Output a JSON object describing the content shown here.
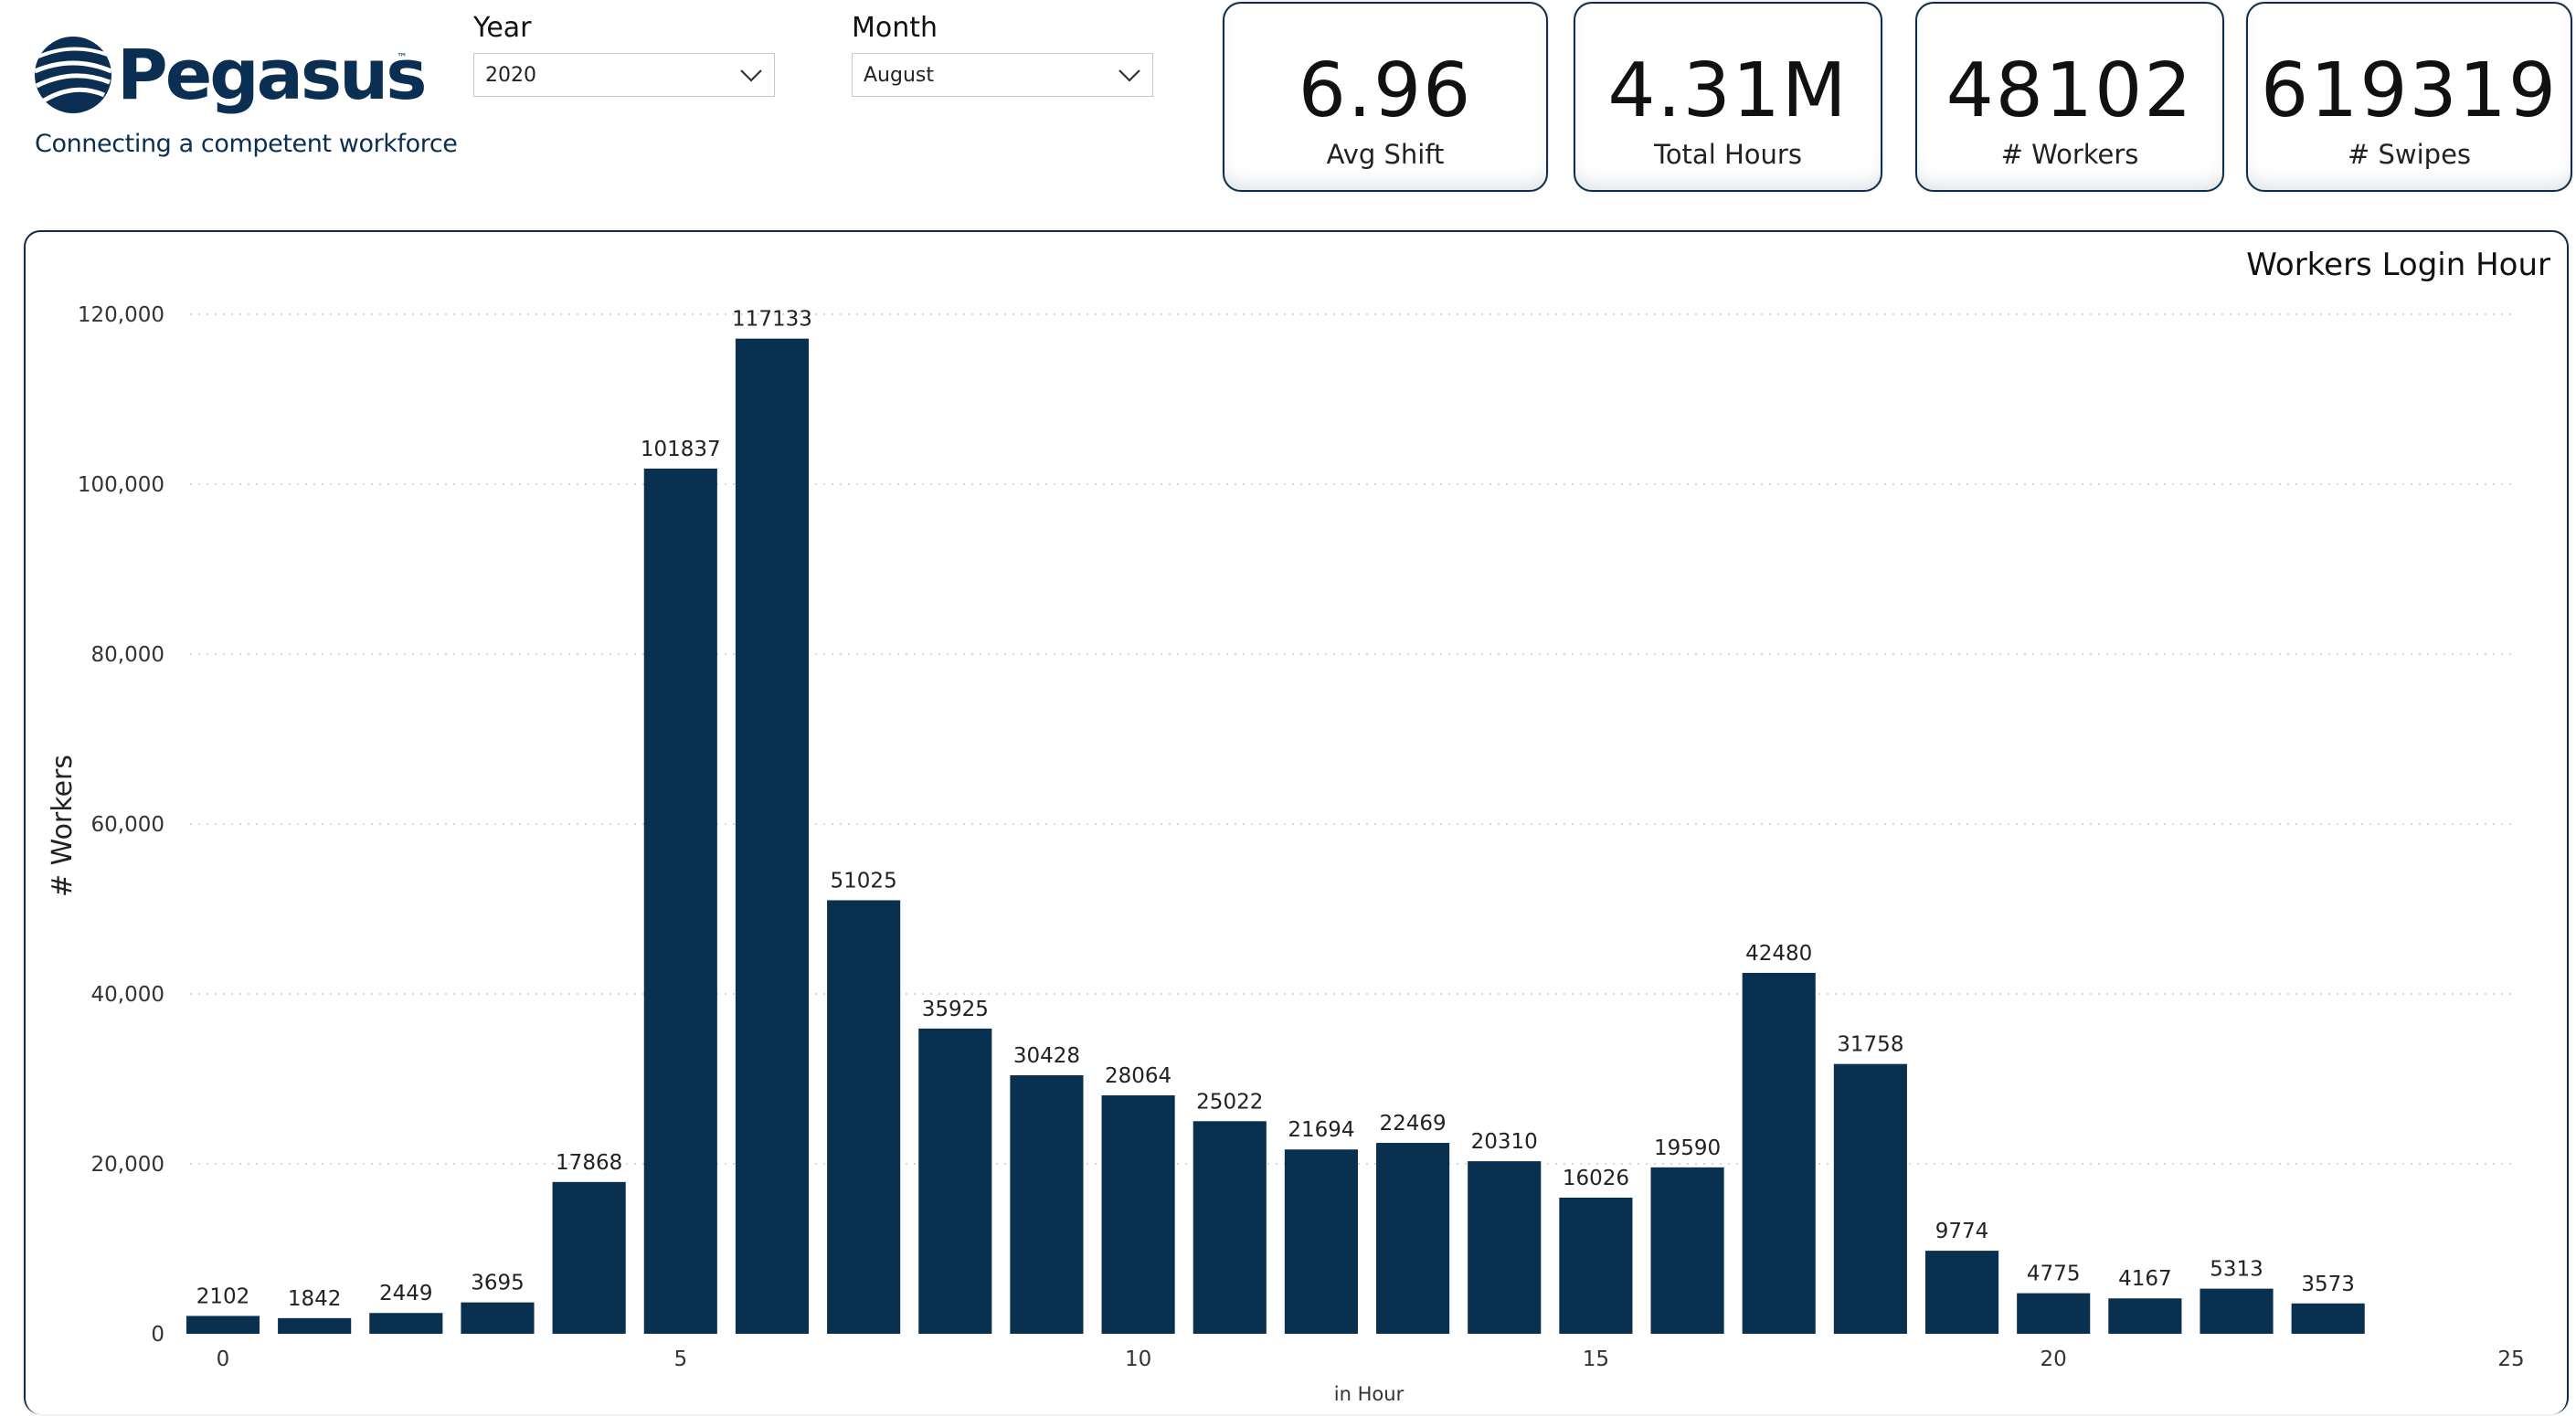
{
  "brand": {
    "name": "Pegasus",
    "trademark": "™",
    "tagline": "Connecting a competent workforce"
  },
  "filters": {
    "year": {
      "label": "Year",
      "selected": "2020"
    },
    "month": {
      "label": "Month",
      "selected": "August"
    }
  },
  "kpis": [
    {
      "value": "6.96",
      "label": "Avg Shift"
    },
    {
      "value": "4.31M",
      "label": "Total Hours"
    },
    {
      "value": "48102",
      "label": "# Workers"
    },
    {
      "value": "619319",
      "label": "# Swipes"
    }
  ],
  "colors": {
    "bar": "#09314f",
    "brand": "#0b2f52",
    "border": "#0f2d4a"
  },
  "chart_data": {
    "type": "bar",
    "title": "Workers Login Hour",
    "xlabel": "in Hour",
    "ylabel": "# Workers",
    "x": [
      0,
      1,
      2,
      3,
      4,
      5,
      6,
      7,
      8,
      9,
      10,
      11,
      12,
      13,
      14,
      15,
      16,
      17,
      18,
      19,
      20,
      21,
      22,
      23
    ],
    "values": [
      2102,
      1842,
      2449,
      3695,
      17868,
      101837,
      117133,
      51025,
      35925,
      30428,
      28064,
      25022,
      21694,
      22469,
      20310,
      16026,
      19590,
      42480,
      31758,
      9774,
      4775,
      4167,
      5313,
      3573
    ],
    "data_labels": [
      "2102",
      "1842",
      "2449",
      "3695",
      "17868",
      "101837",
      "117133",
      "51025",
      "35925",
      "30428",
      "28064",
      "25022",
      "21694",
      "22469",
      "20310",
      "16026",
      "19590",
      "42480",
      "31758",
      "9774",
      "4775",
      "4167",
      "5313",
      "3573"
    ],
    "xlim": [
      0,
      25
    ],
    "ylim": [
      0,
      120000
    ],
    "x_ticks": [
      0,
      5,
      10,
      15,
      20,
      25
    ],
    "x_tick_labels": [
      "0",
      "5",
      "10",
      "15",
      "20",
      "25"
    ],
    "y_ticks": [
      0,
      20000,
      40000,
      60000,
      80000,
      100000,
      120000
    ],
    "y_tick_labels": [
      "0",
      "20,000",
      "40,000",
      "60,000",
      "80,000",
      "100,000",
      "120,000"
    ],
    "grid": true,
    "legend": "none"
  }
}
